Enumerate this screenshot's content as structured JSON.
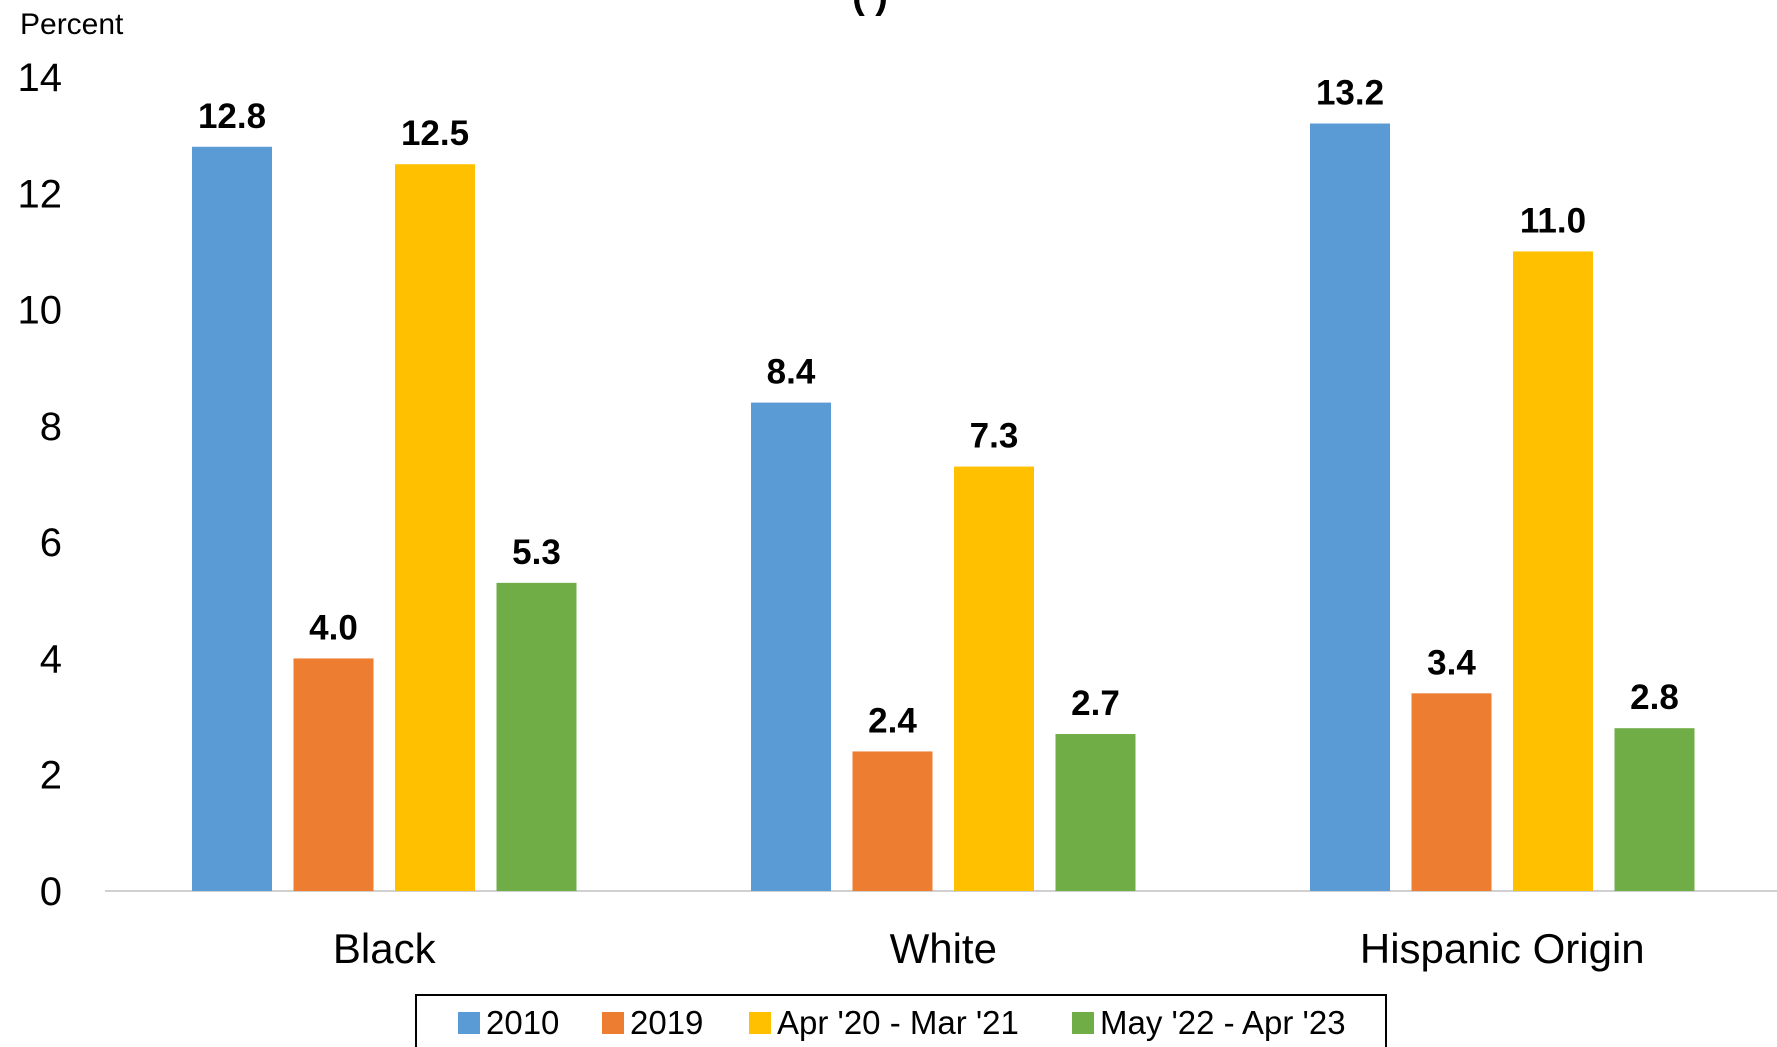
{
  "chart_data": {
    "type": "bar",
    "title": "(                                                                )",
    "ylabel": "Percent",
    "xlabel": "",
    "ylim": [
      0,
      14
    ],
    "yticks": [
      0,
      2,
      4,
      6,
      8,
      10,
      12,
      14
    ],
    "grid": false,
    "legend_position": "bottom",
    "categories": [
      "Black",
      "White",
      "Hispanic Origin"
    ],
    "series": [
      {
        "name": "2010",
        "color": "#5B9BD5",
        "values": [
          12.8,
          8.4,
          13.2
        ],
        "labels": [
          "12.8",
          "8.4",
          "13.2"
        ]
      },
      {
        "name": "2019",
        "color": "#ED7D31",
        "values": [
          4.0,
          2.4,
          3.4
        ],
        "labels": [
          "4.0",
          "2.4",
          "3.4"
        ]
      },
      {
        "name": "Apr '20 - Mar '21",
        "color": "#FFC000",
        "values": [
          12.5,
          7.3,
          11.0
        ],
        "labels": [
          "12.5",
          "7.3",
          "11.0"
        ]
      },
      {
        "name": "May '22 - Apr '23",
        "color": "#70AD47",
        "values": [
          5.3,
          2.7,
          2.8
        ],
        "labels": [
          "5.3",
          "2.7",
          "2.8"
        ]
      }
    ]
  }
}
